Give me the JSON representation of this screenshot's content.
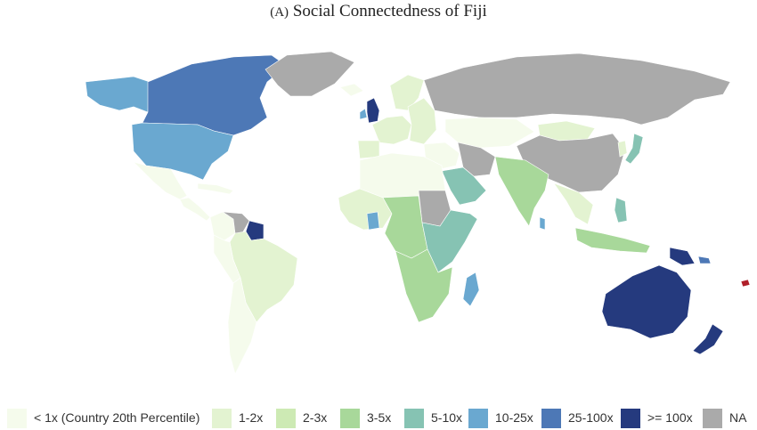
{
  "title": {
    "prefix": "(A)",
    "text": "Social Connectedness of Fiji"
  },
  "palette": {
    "lt1": "#f5fbec",
    "x1_2": "#e3f3d1",
    "x2_3": "#cdeab4",
    "x3_5": "#a8d89a",
    "x5_10": "#86c3b3",
    "x10_25": "#6aa8d0",
    "x25_100": "#4d78b6",
    "ge100": "#253a7e",
    "na": "#aaaaaa",
    "fiji": "#b0202a"
  },
  "legend": [
    {
      "key": "lt1",
      "label": "< 1x (Country 20th Percentile)"
    },
    {
      "key": "x1_2",
      "label": "1-2x"
    },
    {
      "key": "x2_3",
      "label": "2-3x"
    },
    {
      "key": "x3_5",
      "label": "3-5x"
    },
    {
      "key": "x5_10",
      "label": "5-10x"
    },
    {
      "key": "x10_25",
      "label": "10-25x"
    },
    {
      "key": "x25_100",
      "label": "25-100x"
    },
    {
      "key": "ge100",
      "label": ">= 100x"
    },
    {
      "key": "na",
      "label": "NA"
    }
  ],
  "regions": [
    {
      "name": "alaska",
      "class": "x10_25"
    },
    {
      "name": "canada",
      "class": "x25_100"
    },
    {
      "name": "greenland",
      "class": "na"
    },
    {
      "name": "usa",
      "class": "x10_25"
    },
    {
      "name": "mexico",
      "class": "lt1"
    },
    {
      "name": "central-america",
      "class": "lt1"
    },
    {
      "name": "caribbean",
      "class": "lt1"
    },
    {
      "name": "venezuela",
      "class": "na"
    },
    {
      "name": "guyana",
      "class": "ge100"
    },
    {
      "name": "colombia",
      "class": "lt1"
    },
    {
      "name": "brazil",
      "class": "x1_2"
    },
    {
      "name": "andes",
      "class": "lt1"
    },
    {
      "name": "argentina-chile",
      "class": "lt1"
    },
    {
      "name": "iceland",
      "class": "lt1"
    },
    {
      "name": "uk",
      "class": "ge100"
    },
    {
      "name": "ireland",
      "class": "x10_25"
    },
    {
      "name": "scandinavia",
      "class": "x1_2"
    },
    {
      "name": "western-europe",
      "class": "x1_2"
    },
    {
      "name": "iberia",
      "class": "x1_2"
    },
    {
      "name": "eastern-europe",
      "class": "x1_2"
    },
    {
      "name": "russia",
      "class": "na"
    },
    {
      "name": "kazakhstan",
      "class": "lt1"
    },
    {
      "name": "mongolia",
      "class": "x1_2"
    },
    {
      "name": "china",
      "class": "na"
    },
    {
      "name": "japan",
      "class": "x5_10"
    },
    {
      "name": "korea",
      "class": "x1_2"
    },
    {
      "name": "middle-east",
      "class": "lt1"
    },
    {
      "name": "arabia",
      "class": "x5_10"
    },
    {
      "name": "iran",
      "class": "na"
    },
    {
      "name": "india",
      "class": "x3_5"
    },
    {
      "name": "sri-lanka",
      "class": "x10_25"
    },
    {
      "name": "southeast-asia",
      "class": "x1_2"
    },
    {
      "name": "philippines",
      "class": "x5_10"
    },
    {
      "name": "indonesia",
      "class": "x3_5"
    },
    {
      "name": "png",
      "class": "ge100"
    },
    {
      "name": "solomons",
      "class": "x25_100"
    },
    {
      "name": "north-africa",
      "class": "lt1"
    },
    {
      "name": "west-africa",
      "class": "x1_2"
    },
    {
      "name": "ghana",
      "class": "x10_25"
    },
    {
      "name": "central-africa",
      "class": "x3_5"
    },
    {
      "name": "sudan",
      "class": "na"
    },
    {
      "name": "east-africa",
      "class": "x5_10"
    },
    {
      "name": "southern-africa",
      "class": "x3_5"
    },
    {
      "name": "madagascar",
      "class": "x10_25"
    },
    {
      "name": "australia",
      "class": "ge100"
    },
    {
      "name": "new-zealand",
      "class": "ge100"
    },
    {
      "name": "fiji",
      "class": "fiji"
    }
  ]
}
